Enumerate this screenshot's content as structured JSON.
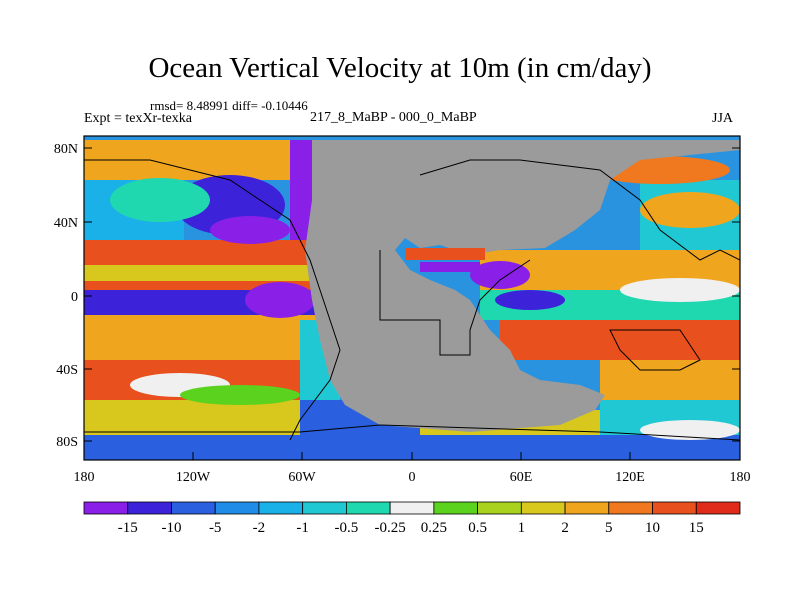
{
  "title": "Ocean Vertical Velocity at 10m (in cm/day)",
  "stats": "rmsd= 8.48991 diff= -0.10446",
  "expt": "Expt = texXr-texka",
  "comparison": "217_8_MaBP - 000_0_MaBP",
  "season": "JJA",
  "lat_ticks": [
    "80N",
    "40N",
    "0",
    "40S",
    "80S"
  ],
  "lon_ticks": [
    "180",
    "120W",
    "60W",
    "0",
    "60E",
    "120E",
    "180"
  ],
  "colorbar": {
    "labels": [
      "-15",
      "-10",
      "-5",
      "-2",
      "-1",
      "-0.5",
      "-0.25",
      "0.25",
      "0.5",
      "1",
      "2",
      "5",
      "10",
      "15"
    ],
    "colors": [
      "#8a1fe8",
      "#3c23d9",
      "#2a5fe0",
      "#1f8de8",
      "#19b1e8",
      "#20c8d4",
      "#1fd8b0",
      "#f0f0f0",
      "#5ad21e",
      "#a8d21e",
      "#d8c81e",
      "#f0a51e",
      "#f0781e",
      "#e8501e",
      "#e02a1a"
    ]
  },
  "colors": {
    "land": "#9b9b9b",
    "background": "#ffffff"
  }
}
